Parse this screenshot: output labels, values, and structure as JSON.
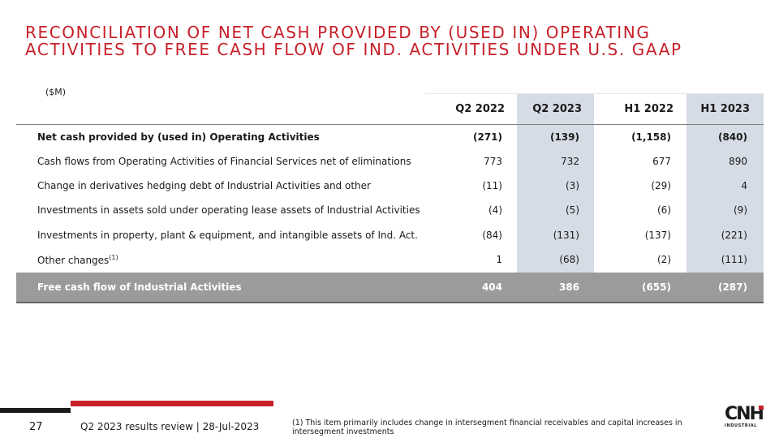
{
  "title": {
    "line1": "RECONCILIATION OF NET CASH PROVIDED BY (USED IN) OPERATING",
    "line2": "ACTIVITIES TO FREE CASH FLOW OF IND. ACTIVITIES UNDER U.S. GAAP"
  },
  "unit": "($M)",
  "columns": [
    "Q2 2022",
    "Q2 2023",
    "H1 2022",
    "H1 2023"
  ],
  "rows": [
    {
      "label": "Net cash provided by (used in) Operating Activities",
      "sup": "",
      "values": [
        "(271)",
        "(139)",
        "(1,158)",
        "(840)"
      ]
    },
    {
      "label": "Cash flows from Operating Activities of Financial Services net of eliminations",
      "sup": "",
      "values": [
        "773",
        "732",
        "677",
        "890"
      ]
    },
    {
      "label": "Change in derivatives hedging debt of Industrial Activities and other",
      "sup": "",
      "values": [
        "(11)",
        "(3)",
        "(29)",
        "4"
      ]
    },
    {
      "label": "Investments in assets sold under operating lease assets of Industrial Activities",
      "sup": "",
      "values": [
        "(4)",
        "(5)",
        "(6)",
        "(9)"
      ]
    },
    {
      "label": "Investments in property, plant & equipment, and intangible assets of Ind. Act.",
      "sup": "",
      "values": [
        "(84)",
        "(131)",
        "(137)",
        "(221)"
      ]
    },
    {
      "label": "Other changes",
      "sup": "(1)",
      "values": [
        "1",
        "(68)",
        "(2)",
        "(111)"
      ]
    }
  ],
  "total": {
    "label": "Free cash flow of Industrial Activities",
    "values": [
      "404",
      "386",
      "(655)",
      "(287)"
    ]
  },
  "footer": {
    "page_number": "27",
    "text": "Q2 2023 results review | 28-Jul-2023",
    "footnote": "(1) This item primarily includes change in intersegment financial receivables and capital increases in intersegment investments"
  },
  "logo": {
    "mark": "CNH",
    "sub": "INDUSTRIAL"
  },
  "colors": {
    "accent": "#c8202a",
    "shade": "#d6dce5",
    "total_row": "#9b9b9b"
  }
}
